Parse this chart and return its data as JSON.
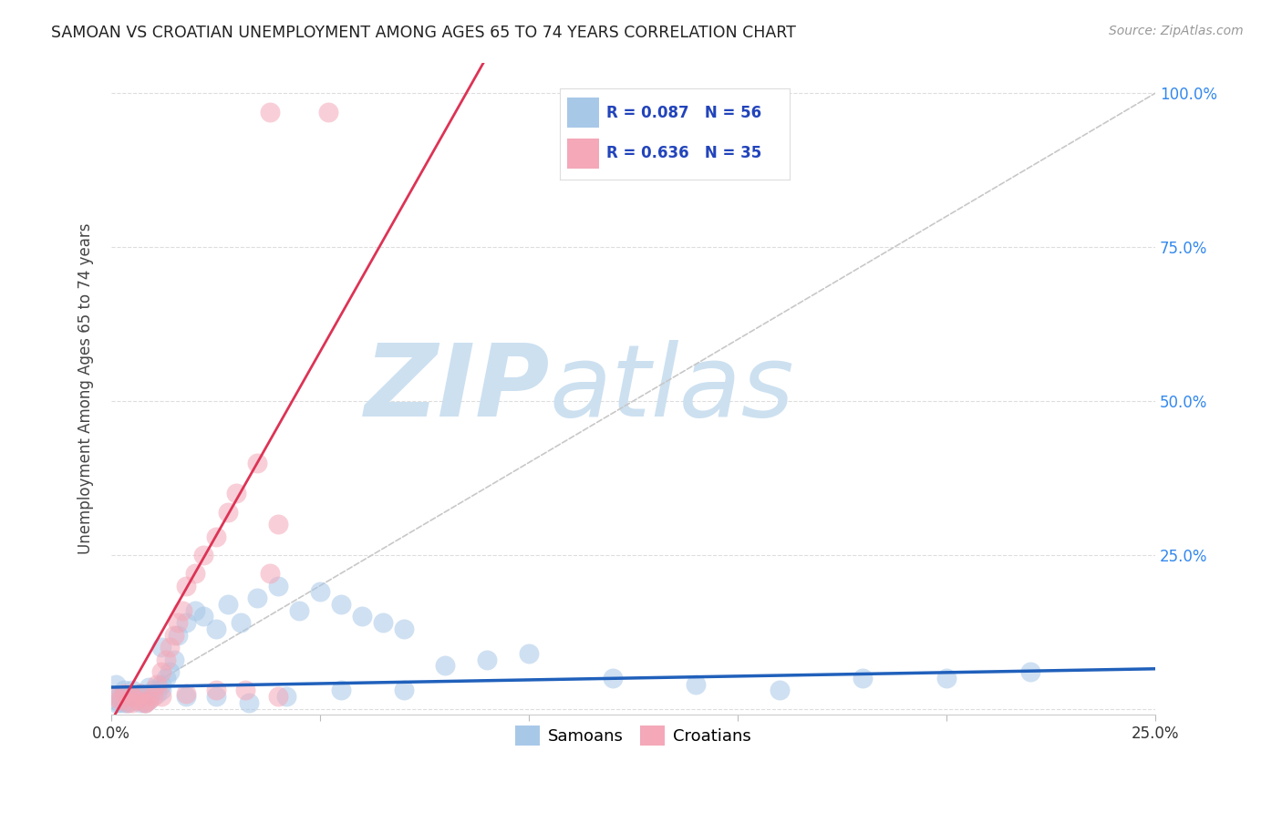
{
  "title": "SAMOAN VS CROATIAN UNEMPLOYMENT AMONG AGES 65 TO 74 YEARS CORRELATION CHART",
  "source": "Source: ZipAtlas.com",
  "ylabel": "Unemployment Among Ages 65 to 74 years",
  "xlim": [
    0.0,
    0.25
  ],
  "ylim": [
    -0.01,
    1.05
  ],
  "samoan_color": "#a8c8e8",
  "croatian_color": "#f4a8b8",
  "samoan_R": 0.087,
  "samoan_N": 56,
  "croatian_R": 0.636,
  "croatian_N": 35,
  "samoan_line_color": "#2060bb",
  "croatian_line_color": "#dd3355",
  "ref_line_color": "#cccccc",
  "watermark_ZIP": "ZIP",
  "watermark_atlas": "atlas",
  "watermark_color": "#cce0f0",
  "background_color": "#ffffff",
  "grid_color": "#dddddd",
  "title_color": "#222222",
  "axis_label_color": "#444444",
  "tick_color_y": "#3388ee",
  "legend_color": "#2244bb",
  "samoan_x": [
    0.001,
    0.002,
    0.003,
    0.004,
    0.005,
    0.006,
    0.007,
    0.008,
    0.009,
    0.01,
    0.011,
    0.012,
    0.013,
    0.014,
    0.015,
    0.002,
    0.003,
    0.005,
    0.007,
    0.009,
    0.012,
    0.016,
    0.018,
    0.02,
    0.022,
    0.025,
    0.028,
    0.031,
    0.035,
    0.04,
    0.045,
    0.05,
    0.055,
    0.06,
    0.065,
    0.07,
    0.08,
    0.09,
    0.1,
    0.12,
    0.14,
    0.16,
    0.18,
    0.2,
    0.22,
    0.001,
    0.003,
    0.005,
    0.008,
    0.012,
    0.018,
    0.025,
    0.033,
    0.042,
    0.055,
    0.07
  ],
  "samoan_y": [
    0.04,
    0.02,
    0.03,
    0.01,
    0.02,
    0.015,
    0.01,
    0.02,
    0.035,
    0.03,
    0.025,
    0.04,
    0.05,
    0.06,
    0.08,
    0.01,
    0.02,
    0.03,
    0.025,
    0.015,
    0.1,
    0.12,
    0.14,
    0.16,
    0.15,
    0.13,
    0.17,
    0.14,
    0.18,
    0.2,
    0.16,
    0.19,
    0.17,
    0.15,
    0.14,
    0.13,
    0.07,
    0.08,
    0.09,
    0.05,
    0.04,
    0.03,
    0.05,
    0.05,
    0.06,
    0.01,
    0.01,
    0.02,
    0.01,
    0.03,
    0.02,
    0.02,
    0.01,
    0.02,
    0.03,
    0.03
  ],
  "croatian_x": [
    0.001,
    0.002,
    0.003,
    0.004,
    0.005,
    0.006,
    0.007,
    0.008,
    0.009,
    0.01,
    0.011,
    0.012,
    0.013,
    0.014,
    0.015,
    0.016,
    0.017,
    0.018,
    0.02,
    0.022,
    0.025,
    0.028,
    0.03,
    0.035,
    0.038,
    0.04,
    0.005,
    0.008,
    0.012,
    0.018,
    0.025,
    0.032,
    0.04,
    0.038,
    0.052
  ],
  "croatian_y": [
    0.02,
    0.015,
    0.025,
    0.01,
    0.02,
    0.015,
    0.025,
    0.01,
    0.015,
    0.02,
    0.04,
    0.06,
    0.08,
    0.1,
    0.12,
    0.14,
    0.16,
    0.2,
    0.22,
    0.25,
    0.28,
    0.32,
    0.35,
    0.4,
    0.22,
    0.3,
    0.01,
    0.01,
    0.02,
    0.025,
    0.03,
    0.03,
    0.02,
    0.97,
    0.97
  ]
}
